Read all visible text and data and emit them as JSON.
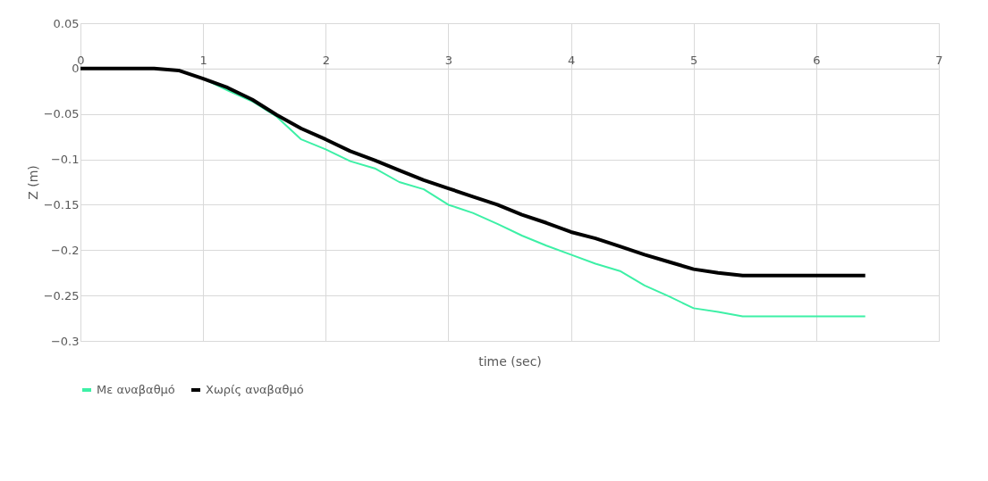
{
  "chart_data": {
    "type": "line",
    "xlabel": "time (sec)",
    "ylabel": "Z (m)",
    "xlim": [
      0,
      7
    ],
    "xticks": [
      0,
      1,
      2,
      3,
      4,
      5,
      6,
      7
    ],
    "ylim": [
      -0.3,
      0.05
    ],
    "yticks": [
      -0.3,
      -0.25,
      -0.2,
      -0.15,
      -0.1,
      -0.05,
      0,
      0.05
    ],
    "grid": true,
    "legend": "bottom",
    "marker": "none",
    "line_style": "solid",
    "series": [
      {
        "name": "Με αναβαθμό",
        "color": "#3df0a6",
        "x": [
          0.8,
          1.0,
          1.2,
          1.4,
          1.6,
          1.8,
          2.0,
          2.2,
          2.4,
          2.6,
          2.8,
          3.0,
          3.2,
          3.4,
          3.6,
          3.8,
          4.0,
          4.2,
          4.4,
          4.6,
          4.8,
          5.0,
          5.2,
          5.4,
          6.4
        ],
        "values": [
          -0.002,
          -0.011,
          -0.024,
          -0.036,
          -0.053,
          -0.078,
          -0.089,
          -0.102,
          -0.11,
          -0.125,
          -0.133,
          -0.15,
          -0.159,
          -0.171,
          -0.184,
          -0.195,
          -0.205,
          -0.215,
          -0.223,
          -0.239,
          -0.251,
          -0.264,
          -0.268,
          -0.273,
          -0.273
        ]
      },
      {
        "name": "Χωρίς αναβαθμό",
        "color": "#000000",
        "x": [
          0,
          0.6,
          0.8,
          1.0,
          1.2,
          1.4,
          1.6,
          1.8,
          2.0,
          2.2,
          2.4,
          2.6,
          2.8,
          3.0,
          3.2,
          3.4,
          3.6,
          3.8,
          4.0,
          4.2,
          4.4,
          4.6,
          4.8,
          5.0,
          5.2,
          5.4,
          6.4
        ],
        "values": [
          0,
          0,
          -0.002,
          -0.011,
          -0.021,
          -0.034,
          -0.051,
          -0.066,
          -0.078,
          -0.091,
          -0.101,
          -0.112,
          -0.123,
          -0.132,
          -0.141,
          -0.15,
          -0.161,
          -0.17,
          -0.18,
          -0.187,
          -0.196,
          -0.205,
          -0.213,
          -0.221,
          -0.225,
          -0.228,
          -0.228
        ]
      }
    ]
  }
}
